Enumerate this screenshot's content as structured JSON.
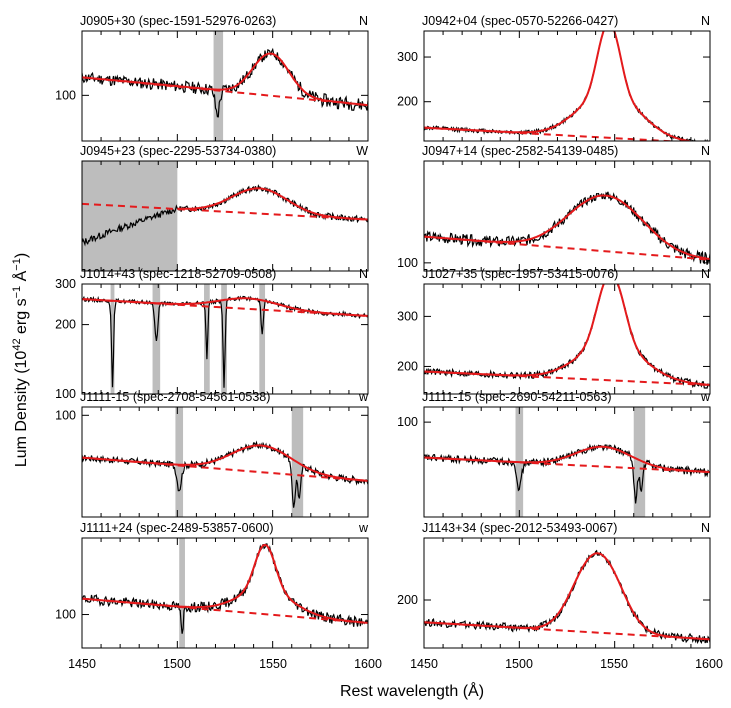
{
  "figure": {
    "ylabel_main": "Lum Density (10",
    "ylabel_exp": "42",
    "ylabel_mid": " erg s",
    "ylabel_exp2": "−1",
    "ylabel_unit": " Å",
    "ylabel_exp3": "−1",
    "ylabel_close": ")",
    "xlabel": "Rest wavelength (Å)",
    "xticks": [
      "1450",
      "1500",
      "1550",
      "1600"
    ]
  },
  "chart_data": [
    {
      "type": "line",
      "title": "J0905+30 (spec-1591-52976-0263)",
      "flag": "N",
      "xlim": [
        1450,
        1600
      ],
      "ylim": [
        75,
        150
      ],
      "log": true,
      "yticks": [
        100
      ],
      "cont": [
        112,
        94
      ],
      "peak": 1549,
      "amp": 30,
      "sig": 9,
      "mask": [
        [
          1519,
          1524
        ]
      ],
      "absorb": [
        [
          1521,
          -15,
          1.2
        ]
      ],
      "noise": 4,
      "yshift": 0,
      "seed": 11
    },
    {
      "type": "line",
      "title": "J0942+04 (spec-0570-52266-0427)",
      "flag": "N",
      "xlim": [
        1450,
        1600
      ],
      "ylim": [
        140,
        380
      ],
      "log": true,
      "yticks": [
        200,
        300
      ],
      "cont": [
        158,
        137
      ],
      "peak": 1547,
      "amp": 195,
      "sig": 5,
      "wing": [
        70,
        15
      ],
      "mask": [],
      "absorb": [],
      "noise": 3,
      "yshift": 0,
      "seed": 12
    },
    {
      "type": "line",
      "title": "J0945+23 (spec-2295-53734-0380)",
      "flag": "W",
      "xlim": [
        1450,
        1600
      ],
      "ylim": [
        100,
        190
      ],
      "log": true,
      "yticks": [],
      "cont": [
        148,
        135
      ],
      "peak": 1543,
      "amp": 22,
      "sig": 14,
      "mask": [
        [
          1450,
          1500
        ]
      ],
      "absorb": [],
      "noise": 2.5,
      "yshift": -30,
      "seed": 13
    },
    {
      "type": "line",
      "title": "J0947+14 (spec-2582-54139-0485)",
      "flag": "N",
      "xlim": [
        1450,
        1600
      ],
      "ylim": [
        95,
        190
      ],
      "log": true,
      "yticks": [
        100
      ],
      "cont": [
        118,
        102
      ],
      "peak": 1545,
      "amp": 45,
      "sig": 18,
      "mask": [],
      "absorb": [],
      "noise": 4,
      "yshift": 0,
      "seed": 14
    },
    {
      "type": "line",
      "title": "J1014+43 (spec-1218-52709-0508)",
      "flag": "N",
      "xlim": [
        1450,
        1600
      ],
      "ylim": [
        100,
        300
      ],
      "log": true,
      "yticks": [
        100,
        200,
        300
      ],
      "cont": [
        258,
        218
      ],
      "peak": 1537,
      "amp": 25,
      "sig": 15,
      "mask": [
        [
          1465,
          1467
        ],
        [
          1487,
          1491
        ],
        [
          1514,
          1517
        ],
        [
          1523,
          1526
        ],
        [
          1543,
          1546
        ]
      ],
      "absorb": [
        [
          1466,
          -150,
          0.6
        ],
        [
          1489,
          -80,
          0.8
        ],
        [
          1515.5,
          -110,
          0.5
        ],
        [
          1524.5,
          -150,
          0.6
        ],
        [
          1544.5,
          -70,
          0.6
        ]
      ],
      "noise": 5,
      "yshift": 0,
      "seed": 15
    },
    {
      "type": "line",
      "title": "J1027+35 (spec-1957-53415-0076)",
      "flag": "N",
      "xlim": [
        1450,
        1600
      ],
      "ylim": [
        160,
        390
      ],
      "log": true,
      "yticks": [
        200,
        300
      ],
      "cont": [
        192,
        172
      ],
      "peak": 1548,
      "amp": 185,
      "sig": 6,
      "wing": [
        60,
        16
      ],
      "mask": [],
      "absorb": [],
      "noise": 5,
      "yshift": 0,
      "seed": 16
    },
    {
      "type": "line",
      "title": "J1111-15 (spec-2708-54561-0538)",
      "flag": "w",
      "xlim": [
        1450,
        1600
      ],
      "ylim": [
        55,
        105
      ],
      "log": true,
      "yticks": [
        100
      ],
      "cont": [
        78,
        68
      ],
      "peak": 1544,
      "amp": 12,
      "sig": 15,
      "mask": [
        [
          1499,
          1503
        ],
        [
          1560,
          1566
        ]
      ],
      "absorb": [
        [
          1501,
          -10,
          1.2
        ],
        [
          1561,
          -18,
          1.0
        ],
        [
          1564,
          -14,
          0.8
        ]
      ],
      "noise": 1.5,
      "yshift": 0,
      "seed": 17
    },
    {
      "type": "line",
      "title": "J1111-15 (spec-2690-54211-0563)",
      "flag": "w",
      "xlim": [
        1450,
        1600
      ],
      "ylim": [
        55,
        110
      ],
      "log": true,
      "yticks": [
        100
      ],
      "cont": [
        80,
        73
      ],
      "peak": 1544,
      "amp": 10,
      "sig": 14,
      "mask": [
        [
          1498,
          1502
        ],
        [
          1560,
          1566
        ]
      ],
      "absorb": [
        [
          1500,
          -12,
          1.2
        ],
        [
          1561,
          -18,
          1.0
        ],
        [
          1564,
          -14,
          0.8
        ]
      ],
      "noise": 1.8,
      "yshift": 0,
      "seed": 18
    },
    {
      "type": "line",
      "title": "J1111+24 (spec-2489-53857-0600)",
      "flag": "w",
      "xlim": [
        1450,
        1600
      ],
      "ylim": [
        85,
        145
      ],
      "log": true,
      "yticks": [
        100
      ],
      "cont": [
        108,
        96
      ],
      "peak": 1546,
      "amp": 28,
      "sig": 5,
      "wing": [
        12,
        14
      ],
      "mask": [
        [
          1501,
          1504
        ]
      ],
      "absorb": [
        [
          1502.5,
          -14,
          0.6
        ]
      ],
      "noise": 2.5,
      "yshift": 0,
      "seed": 19
    },
    {
      "type": "line",
      "title": "J1143+34 (spec-2012-53493-0067)",
      "flag": "N",
      "xlim": [
        1450,
        1600
      ],
      "ylim": [
        150,
        290
      ],
      "log": true,
      "yticks": [
        200
      ],
      "cont": [
        175,
        158
      ],
      "peak": 1541,
      "amp": 100,
      "sig": 11,
      "mask": [],
      "absorb": [],
      "noise": 4,
      "yshift": 0,
      "seed": 20
    }
  ],
  "colors": {
    "data": "#000000",
    "model": "#e41a1c",
    "continuum": "#e41a1c",
    "mask": "#bdbdbd"
  }
}
